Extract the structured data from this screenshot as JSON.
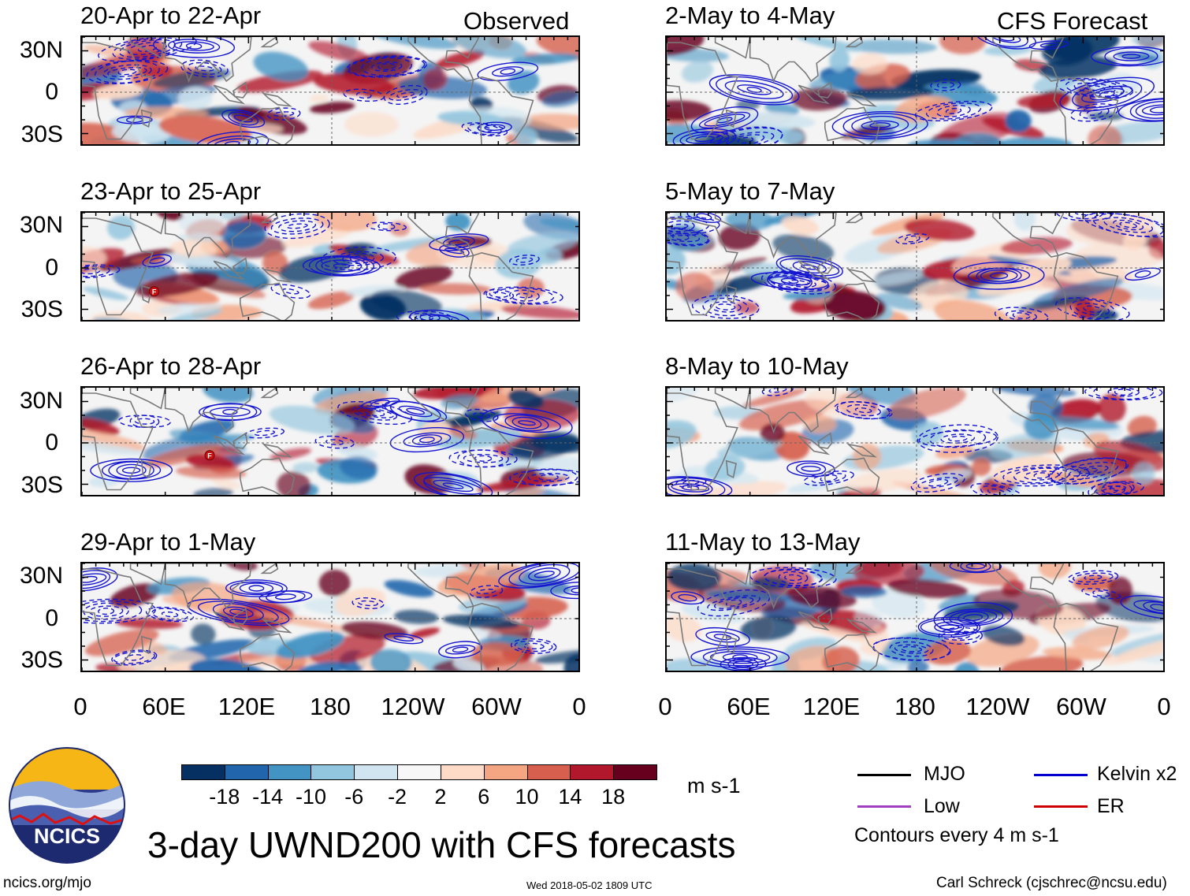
{
  "figure": {
    "title": "3-day UWND200 with CFS forecasts",
    "left_column_label": "Observed",
    "right_column_label": "CFS Forecast",
    "units": "m s-1",
    "contour_note": "Contours every 4 m s-1",
    "site": "ncics.org/mjo",
    "timestamp": "Wed 2018-05-02 1809 UTC",
    "author": "Carl Schreck (cjschrec@ncsu.edu)",
    "logo_text": "NCICS"
  },
  "panels": {
    "observed": [
      {
        "period": "20-Apr to 22-Apr",
        "seed": 11,
        "markers": []
      },
      {
        "period": "23-Apr to 25-Apr",
        "seed": 23,
        "markers": [
          {
            "lon": 52,
            "lat": -17,
            "label": "F"
          }
        ]
      },
      {
        "period": "26-Apr to 28-Apr",
        "seed": 37,
        "markers": [
          {
            "lon": 92,
            "lat": -9,
            "label": "F"
          }
        ]
      },
      {
        "period": "29-Apr to 1-May",
        "seed": 41,
        "markers": []
      }
    ],
    "forecast": [
      {
        "period": "2-May to 4-May",
        "seed": 53,
        "markers": []
      },
      {
        "period": "5-May to 7-May",
        "seed": 67,
        "markers": []
      },
      {
        "period": "8-May to 10-May",
        "seed": 71,
        "markers": []
      },
      {
        "period": "11-May to 13-May",
        "seed": 83,
        "markers": []
      }
    ]
  },
  "axes": {
    "y_ticks": [
      "30N",
      "0",
      "30S"
    ],
    "y_values": [
      30,
      0,
      -30
    ],
    "x_ticks": [
      "0",
      "60E",
      "120E",
      "180",
      "120W",
      "60W",
      "0"
    ],
    "x_values": [
      0,
      60,
      120,
      180,
      240,
      300,
      360
    ],
    "lat_range": [
      -40,
      40
    ],
    "lon_range": [
      0,
      360
    ]
  },
  "colorbar": {
    "colors": [
      "#053061",
      "#2166ac",
      "#4393c3",
      "#92c5de",
      "#d1e5f0",
      "#f7f7f7",
      "#fddbc7",
      "#f4a582",
      "#d6604d",
      "#b2182b",
      "#67001f"
    ],
    "labels": [
      "-18",
      "-14",
      "-10",
      "-6",
      "-2",
      "2",
      "6",
      "10",
      "14",
      "18"
    ]
  },
  "legend": [
    {
      "name": "MJO",
      "color": "#000000"
    },
    {
      "name": "Kelvin x2",
      "color": "#0000cc"
    },
    {
      "name": "Low",
      "color": "#a040c0"
    },
    {
      "name": "ER",
      "color": "#cc0000"
    }
  ]
}
